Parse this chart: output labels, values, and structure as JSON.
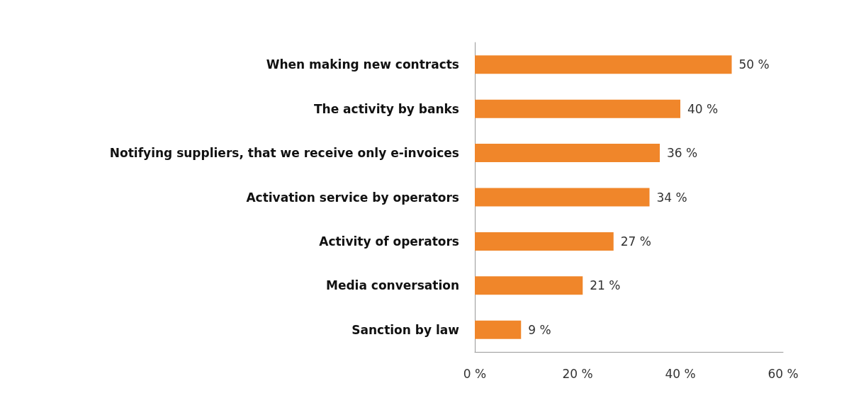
{
  "chart_data": {
    "type": "bar",
    "orientation": "horizontal",
    "categories": [
      "When making new contracts",
      "The activity by banks",
      "Notifying suppliers, that we receive only e-invoices",
      "Activation service by operators",
      "Activity of operators",
      "Media conversation",
      "Sanction by law"
    ],
    "values": [
      50,
      40,
      36,
      34,
      27,
      21,
      9
    ],
    "value_labels": [
      "50 %",
      "40 %",
      "36 %",
      "34 %",
      "27 %",
      "21 %",
      "9 %"
    ],
    "color": "#f0862a",
    "xlim": [
      0,
      60
    ],
    "xticks": [
      {
        "value": 0,
        "label": "0 %"
      },
      {
        "value": 20,
        "label": "20 %"
      },
      {
        "value": 40,
        "label": "40 %"
      },
      {
        "value": 60,
        "label": "60 %"
      }
    ],
    "grid": false
  }
}
